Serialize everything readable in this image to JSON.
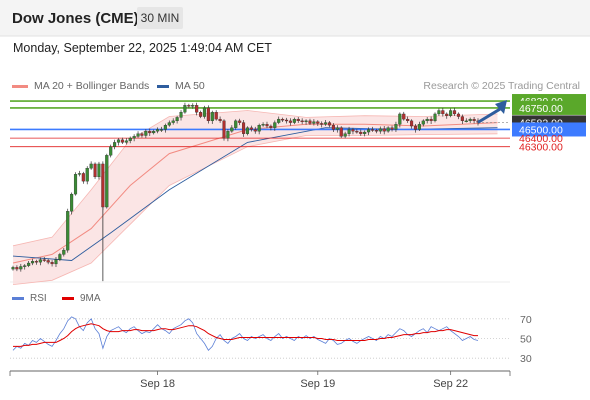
{
  "header": {
    "title": "Dow Jones (CME)",
    "timeframe": "30 MIN",
    "datetime": "Monday, September 22, 2025 1:49:04 AM CET"
  },
  "legend": {
    "bollinger_label": "MA 20 + Bollinger Bands",
    "ma50_label": "MA 50",
    "research": "Research © 2025 Trading Central",
    "bollinger_color": "#f28b82",
    "ma50_color": "#2e5d9e"
  },
  "rsi_legend": {
    "rsi_label": "RSI",
    "ma_label": "9MA",
    "rsi_color": "#5b7fd6",
    "ma_color": "#e00000"
  },
  "chart_data": {
    "type": "candlestick",
    "instrument": "Dow Jones (CME)",
    "interval": "30 MIN",
    "x_tick_labels": [
      "Sep 18",
      "Sep 19",
      "Sep 22"
    ],
    "ylim": [
      44730,
      46900
    ],
    "last_price": 46582,
    "levels": [
      {
        "value": 46830,
        "label": "46830.00",
        "kind": "target",
        "color": "#5aa82a"
      },
      {
        "value": 46750,
        "label": "46750.00",
        "kind": "target",
        "color": "#5aa82a"
      },
      {
        "value": 46582,
        "label": "46582.00",
        "kind": "last",
        "color": "#333333"
      },
      {
        "value": 46500,
        "label": "46500.00",
        "kind": "pivot",
        "color": "#3d7bff"
      },
      {
        "value": 46400,
        "label": "46400.00",
        "kind": "support",
        "color": "#e02020"
      },
      {
        "value": 46300,
        "label": "46300.00",
        "kind": "support",
        "color": "#e02020"
      }
    ],
    "series": [
      {
        "name": "MA 20 + Bollinger Bands",
        "x": [
          0,
          10,
          20,
          30,
          40,
          60,
          75,
          90,
          105,
          124
        ],
        "mid": [
          44950,
          45050,
          45350,
          45850,
          46220,
          46500,
          46560,
          46560,
          46540,
          46580
        ],
        "upper": [
          45150,
          45250,
          45800,
          46380,
          46650,
          46720,
          46640,
          46660,
          46650,
          46680
        ],
        "lower": [
          44700,
          44750,
          44950,
          45400,
          45850,
          46300,
          46430,
          46430,
          46440,
          46450
        ]
      },
      {
        "name": "MA 50",
        "x": [
          0,
          15,
          25,
          40,
          60,
          80,
          100,
          124
        ],
        "values": [
          45030,
          44980,
          45300,
          45800,
          46350,
          46520,
          46500,
          46520
        ]
      }
    ],
    "candles": {
      "open": [
        44880,
        44900,
        44880,
        44910,
        44920,
        44950,
        44970,
        44960,
        44990,
        44980,
        44960,
        44940,
        44990,
        45050,
        45100,
        45550,
        45750,
        45980,
        45990,
        45900,
        46050,
        46100,
        45950,
        46100,
        45600,
        46200,
        46300,
        46350,
        46380,
        46350,
        46370,
        46400,
        46420,
        46450,
        46430,
        46480,
        46460,
        46480,
        46500,
        46500,
        46550,
        46580,
        46600,
        46640,
        46700,
        46780,
        46770,
        46780,
        46700,
        46650,
        46750,
        46600,
        46700,
        46620,
        46600,
        46400,
        46480,
        46520,
        46600,
        46580,
        46450,
        46520,
        46500,
        46480,
        46550,
        46560,
        46540,
        46520,
        46580,
        46620,
        46610,
        46600,
        46580,
        46620,
        46600,
        46590,
        46600,
        46570,
        46590,
        46570,
        46560,
        46580,
        46550,
        46500,
        46520,
        46420,
        46450,
        46500,
        46480,
        46470,
        46450,
        46470,
        46500,
        46490,
        46480,
        46510,
        46480,
        46520,
        46500,
        46560,
        46680,
        46620,
        46600,
        46540,
        46500,
        46560,
        46600,
        46620,
        46600,
        46680,
        46720,
        46680,
        46660,
        46720,
        46680,
        46650,
        46600,
        46600,
        46620,
        46600
      ],
      "close": [
        44900,
        44880,
        44910,
        44920,
        44950,
        44970,
        44960,
        44990,
        44980,
        44960,
        44940,
        44990,
        45050,
        45100,
        45550,
        45750,
        45980,
        45990,
        45900,
        46050,
        46100,
        45950,
        46100,
        45600,
        46200,
        46300,
        46350,
        46380,
        46350,
        46370,
        46400,
        46420,
        46450,
        46430,
        46480,
        46460,
        46480,
        46500,
        46500,
        46550,
        46580,
        46600,
        46640,
        46700,
        46780,
        46770,
        46780,
        46700,
        46650,
        46750,
        46600,
        46700,
        46620,
        46600,
        46400,
        46480,
        46520,
        46600,
        46580,
        46450,
        46520,
        46500,
        46480,
        46550,
        46560,
        46540,
        46520,
        46580,
        46620,
        46610,
        46600,
        46580,
        46620,
        46600,
        46590,
        46600,
        46570,
        46590,
        46570,
        46560,
        46580,
        46550,
        46500,
        46520,
        46420,
        46450,
        46500,
        46480,
        46470,
        46450,
        46470,
        46500,
        46490,
        46480,
        46510,
        46480,
        46520,
        46500,
        46560,
        46680,
        46620,
        46600,
        46540,
        46500,
        46560,
        46600,
        46620,
        46600,
        46680,
        46720,
        46680,
        46660,
        46720,
        46680,
        46650,
        46600,
        46600,
        46620,
        46600,
        46582
      ]
    },
    "rsi": {
      "ylim": [
        20,
        80
      ],
      "y_tick_labels": [
        "70",
        "50",
        "30"
      ],
      "rsi_values": [
        38,
        42,
        40,
        45,
        43,
        48,
        46,
        50,
        47,
        44,
        42,
        48,
        55,
        60,
        68,
        72,
        70,
        62,
        58,
        66,
        70,
        60,
        55,
        40,
        52,
        58,
        60,
        62,
        58,
        56,
        60,
        62,
        58,
        55,
        57,
        56,
        60,
        64,
        60,
        58,
        55,
        60,
        62,
        64,
        68,
        70,
        66,
        55,
        50,
        45,
        38,
        42,
        50,
        54,
        48,
        45,
        50,
        52,
        55,
        50,
        48,
        52,
        50,
        52,
        54,
        50,
        48,
        52,
        55,
        50,
        52,
        50,
        48,
        52,
        50,
        53,
        50,
        52,
        49,
        47,
        45,
        50,
        48,
        44,
        45,
        48,
        50,
        47,
        45,
        48,
        50,
        52,
        50,
        48,
        52,
        50,
        54,
        52,
        56,
        60,
        58,
        54,
        52,
        55,
        58,
        60,
        56,
        62,
        60,
        58,
        60,
        62,
        58,
        55,
        52,
        48,
        50,
        52,
        49,
        48
      ],
      "ma_values": [
        42,
        42,
        42,
        43,
        43,
        44,
        44,
        45,
        46,
        46,
        46,
        46,
        48,
        50,
        53,
        57,
        60,
        62,
        63,
        64,
        65,
        64,
        63,
        60,
        58,
        57,
        57,
        57,
        58,
        58,
        58,
        59,
        59,
        58,
        58,
        58,
        58,
        59,
        60,
        60,
        59,
        59,
        60,
        61,
        62,
        63,
        63,
        62,
        60,
        58,
        55,
        53,
        51,
        50,
        49,
        49,
        49,
        50,
        51,
        51,
        51,
        51,
        51,
        51,
        51,
        51,
        51,
        51,
        51,
        51,
        51,
        51,
        51,
        51,
        51,
        51,
        51,
        51,
        50,
        50,
        49,
        49,
        49,
        48,
        48,
        48,
        48,
        48,
        48,
        48,
        48,
        49,
        49,
        49,
        50,
        50,
        51,
        51,
        52,
        53,
        54,
        54,
        54,
        55,
        55,
        56,
        56,
        57,
        57,
        58,
        58,
        59,
        59,
        58,
        57,
        56,
        55,
        54,
        53,
        53
      ]
    }
  }
}
